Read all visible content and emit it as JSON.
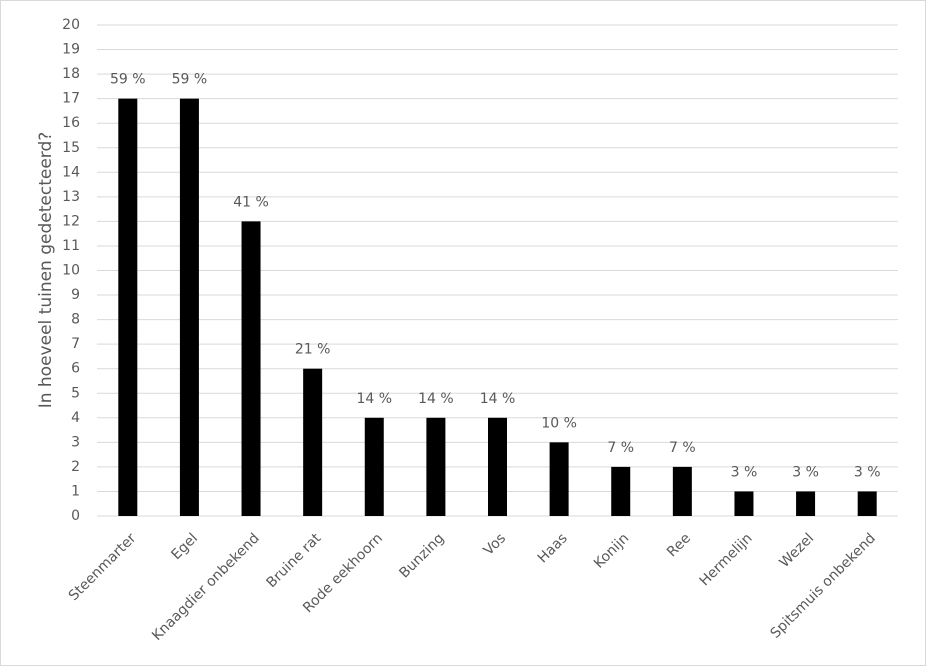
{
  "chart_data": {
    "type": "bar",
    "y_label": "In hoeveel tuinen gedetecteerd?",
    "categories": [
      "Steenmarter",
      "Egel",
      "Knaagdier onbekend",
      "Bruine rat",
      "Rode eekhoorn",
      "Bunzing",
      "Vos",
      "Haas",
      "Konijn",
      "Ree",
      "Hermelijn",
      "Wezel",
      "Spitsmuis onbekend"
    ],
    "values": [
      17,
      17,
      12,
      6,
      4,
      4,
      4,
      3,
      2,
      2,
      1,
      1,
      1
    ],
    "value_labels": [
      "59 %",
      "59 %",
      "41 %",
      "21 %",
      "14 %",
      "14 %",
      "14 %",
      "10 %",
      "7 %",
      "7 %",
      "3 %",
      "3 %",
      "3 %"
    ],
    "color": "#000000",
    "ylim": [
      0,
      20
    ],
    "yticks": [
      0,
      1,
      2,
      3,
      4,
      5,
      6,
      7,
      8,
      9,
      10,
      11,
      12,
      13,
      14,
      15,
      16,
      17,
      18,
      19,
      20
    ],
    "grid": true
  }
}
